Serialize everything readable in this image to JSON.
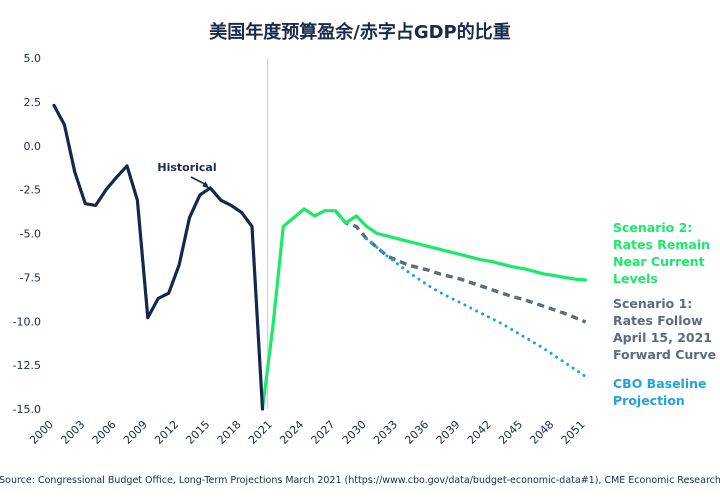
{
  "chart_data": {
    "type": "line",
    "title": "美国年度预算盈余/赤字占GDP的比重",
    "source": "Source: Congressional Budget Office, Long-Term Projections March 2021 (https://www.cbo.gov/data/budget-economic-data#1), CME Economic Research",
    "ylim": [
      -15,
      5
    ],
    "yticks": [
      "5.0",
      "2.5",
      "0.0",
      "-2.5",
      "-5.0",
      "-7.5",
      "-10.0",
      "-12.5",
      "-15.0"
    ],
    "xlim": [
      2000,
      2052
    ],
    "xticks": [
      "2000",
      "2003",
      "2006",
      "2009",
      "2012",
      "2015",
      "2018",
      "2021",
      "2024",
      "2027",
      "2030",
      "2033",
      "2036",
      "2039",
      "2042",
      "2045",
      "2048",
      "2051"
    ],
    "divider_year": 2020.5,
    "annotation": {
      "text": "Historical",
      "x": 2015,
      "y": -2.6
    },
    "colors": {
      "historical": "#14284b",
      "scenario2": "#1be96a",
      "scenario1": "#5b6b80",
      "cbo": "#24a2dc",
      "axis": "#c9ccd2"
    },
    "series": [
      {
        "key": "historical",
        "x": [
          2000,
          2001,
          2002,
          2003,
          2004,
          2005,
          2006,
          2007,
          2008,
          2009,
          2010,
          2011,
          2012,
          2013,
          2014,
          2015,
          2016,
          2017,
          2018,
          2019,
          2020
        ],
        "y": [
          2.3,
          1.2,
          -1.5,
          -3.3,
          -3.4,
          -2.5,
          -1.8,
          -1.15,
          -3.1,
          -9.8,
          -8.7,
          -8.4,
          -6.8,
          -4.1,
          -2.8,
          -2.4,
          -3.1,
          -3.4,
          -3.8,
          -4.6,
          -15.0
        ]
      },
      {
        "key": "scenario2",
        "name": "Scenario 2: Rates Remain Near Current Levels",
        "x": [
          2020,
          2021,
          2022,
          2023,
          2024,
          2025,
          2026,
          2027,
          2028,
          2029,
          2030,
          2031,
          2032,
          2033,
          2034,
          2035,
          2036,
          2037,
          2038,
          2039,
          2040,
          2041,
          2042,
          2043,
          2044,
          2045,
          2046,
          2047,
          2048,
          2049,
          2050,
          2051
        ],
        "y": [
          -15.0,
          -10.3,
          -4.6,
          -4.1,
          -3.6,
          -4.0,
          -3.7,
          -3.7,
          -4.4,
          -4.0,
          -4.6,
          -5.0,
          -5.15,
          -5.3,
          -5.45,
          -5.6,
          -5.75,
          -5.9,
          -6.05,
          -6.2,
          -6.35,
          -6.5,
          -6.6,
          -6.75,
          -6.9,
          -7.0,
          -7.15,
          -7.3,
          -7.4,
          -7.5,
          -7.6,
          -7.65
        ]
      },
      {
        "key": "scenario1",
        "name": "Scenario 1: Rates Follow April 15, 2021 Forward Curve",
        "x": [
          2027,
          2028,
          2029,
          2030,
          2031,
          2032,
          2033,
          2034,
          2035,
          2036,
          2037,
          2038,
          2039,
          2040,
          2041,
          2042,
          2043,
          2044,
          2045,
          2046,
          2047,
          2048,
          2049,
          2050,
          2051
        ],
        "y": [
          -3.7,
          -4.4,
          -4.6,
          -5.3,
          -5.8,
          -6.3,
          -6.55,
          -6.8,
          -6.95,
          -7.1,
          -7.3,
          -7.45,
          -7.6,
          -7.8,
          -8.0,
          -8.2,
          -8.4,
          -8.6,
          -8.75,
          -8.95,
          -9.15,
          -9.35,
          -9.55,
          -9.8,
          -10.05
        ]
      },
      {
        "key": "cbo",
        "name": "CBO Baseline Projection",
        "x": [
          2030,
          2031,
          2032,
          2033,
          2034,
          2035,
          2036,
          2037,
          2038,
          2039,
          2040,
          2041,
          2042,
          2043,
          2044,
          2045,
          2046,
          2047,
          2048,
          2049,
          2050,
          2051
        ],
        "y": [
          -5.3,
          -5.8,
          -6.3,
          -6.75,
          -7.2,
          -7.6,
          -8.0,
          -8.35,
          -8.65,
          -8.95,
          -9.25,
          -9.55,
          -9.85,
          -10.15,
          -10.5,
          -10.85,
          -11.2,
          -11.55,
          -11.95,
          -12.35,
          -12.75,
          -13.15
        ]
      }
    ],
    "legend": [
      {
        "key": "scenario2",
        "lines": [
          "Scenario 2:",
          "Rates Remain",
          "Near Current",
          "Levels"
        ]
      },
      {
        "key": "scenario1",
        "lines": [
          "Scenario 1:",
          "Rates Follow",
          "April 15, 2021",
          "Forward Curve"
        ]
      },
      {
        "key": "cbo",
        "lines": [
          "CBO Baseline",
          "Projection"
        ]
      }
    ]
  }
}
